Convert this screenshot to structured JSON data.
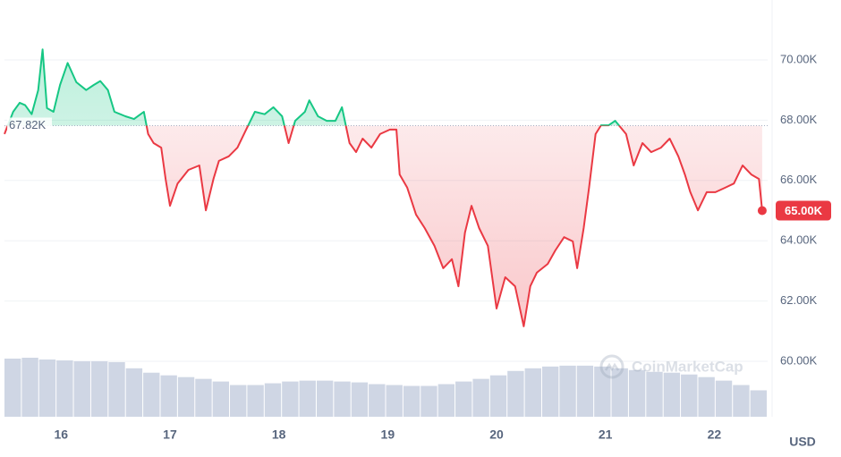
{
  "chart_data": {
    "type": "line",
    "x": [
      15.48,
      15.56,
      15.62,
      15.67,
      15.73,
      15.79,
      15.83,
      15.87,
      15.93,
      15.99,
      16.06,
      16.14,
      16.23,
      16.3,
      16.36,
      16.43,
      16.49,
      16.59,
      16.67,
      16.76,
      16.8,
      16.85,
      16.92,
      16.96,
      17.0,
      17.07,
      17.17,
      17.27,
      17.33,
      17.4,
      17.45,
      17.54,
      17.62,
      17.7,
      17.78,
      17.87,
      17.95,
      18.03,
      18.09,
      18.15,
      18.24,
      18.28,
      18.36,
      18.44,
      18.52,
      18.58,
      18.65,
      18.71,
      18.77,
      18.85,
      18.93,
      19.02,
      19.08,
      19.11,
      19.18,
      19.26,
      19.34,
      19.43,
      19.51,
      19.59,
      19.65,
      19.71,
      19.77,
      19.84,
      19.92,
      20.0,
      20.08,
      20.17,
      20.25,
      20.31,
      20.37,
      20.47,
      20.54,
      20.62,
      20.7,
      20.74,
      20.8,
      20.85,
      20.91,
      20.96,
      21.03,
      21.09,
      21.19,
      21.26,
      21.34,
      21.42,
      21.51,
      21.59,
      21.67,
      21.73,
      21.78,
      21.85,
      21.93,
      22.01,
      22.1,
      22.18,
      22.26,
      22.34,
      22.41,
      22.44
    ],
    "values": [
      67540,
      68280,
      68580,
      68500,
      68200,
      69000,
      70350,
      68400,
      68280,
      69170,
      69900,
      69260,
      69000,
      69170,
      69300,
      69000,
      68280,
      68130,
      68040,
      68280,
      67540,
      67240,
      67090,
      66050,
      65160,
      65900,
      66350,
      66500,
      65010,
      66050,
      66650,
      66800,
      67090,
      67690,
      68280,
      68200,
      68430,
      68130,
      67240,
      67980,
      68280,
      68660,
      68130,
      67980,
      67980,
      68430,
      67240,
      66940,
      67390,
      67090,
      67540,
      67690,
      67690,
      66200,
      65760,
      64870,
      64420,
      63830,
      63090,
      63390,
      62490,
      64270,
      65160,
      64420,
      63830,
      61750,
      62790,
      62490,
      61160,
      62490,
      62940,
      63230,
      63680,
      64120,
      63980,
      63090,
      64420,
      65760,
      67540,
      67830,
      67830,
      67980,
      67540,
      66500,
      67240,
      66940,
      67090,
      67390,
      66800,
      66200,
      65610,
      65010,
      65610,
      65610,
      65760,
      65900,
      66500,
      66200,
      66050,
      65000
    ],
    "up_color": "#16c784",
    "down_color": "#ea3943",
    "baseline": {
      "value": 67820,
      "label": "67.82K"
    },
    "current_price": {
      "value": 65000,
      "label": "65.00K"
    },
    "xlim": [
      15.48,
      22.49
    ],
    "xticks": [
      16,
      17,
      18,
      19,
      20,
      21,
      22
    ],
    "ylim": [
      58160,
      71840
    ],
    "yticks": [
      {
        "value": 60000,
        "label": "60.00K"
      },
      {
        "value": 62000,
        "label": "62.00K"
      },
      {
        "value": 64000,
        "label": "64.00K"
      },
      {
        "value": 66000,
        "label": "66.00K"
      },
      {
        "value": 68000,
        "label": "68.00K"
      },
      {
        "value": 70000,
        "label": "70.00K"
      }
    ],
    "y_label": "USD",
    "grid": true,
    "watermark": "CoinMarketCap",
    "volume": {
      "color": "#cfd6e4",
      "values": [
        66,
        67,
        65,
        64,
        63,
        63,
        62,
        55,
        50,
        47,
        45,
        43,
        40,
        36,
        36,
        38,
        40,
        41,
        41,
        40,
        39,
        37,
        36,
        35,
        35,
        37,
        40,
        43,
        47,
        52,
        55,
        57,
        58,
        58,
        57,
        55,
        53,
        51,
        50,
        48,
        45,
        41,
        36,
        30
      ]
    }
  }
}
